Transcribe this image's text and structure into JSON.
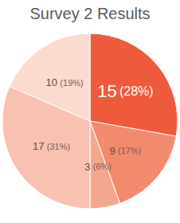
{
  "chart_data": {
    "type": "pie",
    "title": "Survey 2 Results",
    "values": [
      15,
      9,
      3,
      17,
      10
    ],
    "value_labels": [
      "15 (28%)",
      "9 (17%)",
      "3 (6%)",
      "17 (31%)",
      "10 (19%)"
    ],
    "colors": [
      "#f05a3c",
      "#f28a6e",
      "#f4a78f",
      "#f8c1b1",
      "#fbdad0"
    ],
    "data_labels": true
  }
}
